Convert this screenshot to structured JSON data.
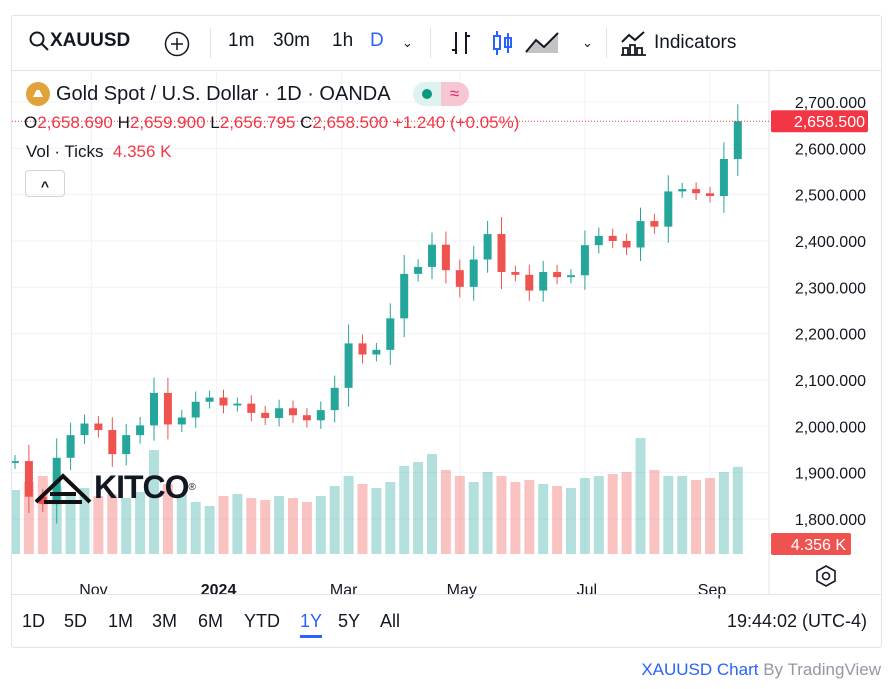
{
  "toolbar": {
    "symbol": "XAUUSD",
    "intervals": [
      "1m",
      "30m",
      "1h",
      "D"
    ],
    "active_interval": "D",
    "indicators_label": "Indicators"
  },
  "legend": {
    "title": "Gold Spot / U.S. Dollar · 1D · OANDA",
    "o_label": "O",
    "o": "2,658.690",
    "h_label": "H",
    "h": "2,659.900",
    "l_label": "L",
    "l": "2,656.795",
    "c_label": "C",
    "c": "2,658.500",
    "change": "+1.240 (+0.05%)",
    "vol_label": "Vol · Ticks",
    "vol": "4.356 K",
    "collapse": "^"
  },
  "logo": "KITCO",
  "colors": {
    "up": "#26a69a",
    "down": "#ef5350",
    "accent": "#2962ff",
    "price_label": "#f23645"
  },
  "chart_data": {
    "type": "candlestick",
    "title": "Gold Spot / U.S. Dollar · 1D · OANDA",
    "ylim": [
      1760,
      2740
    ],
    "yticks": [
      1800,
      1900,
      2000,
      2100,
      2200,
      2300,
      2400,
      2500,
      2600,
      2700
    ],
    "ytick_labels": [
      "1,800.000",
      "1,900.000",
      "2,000.000",
      "2,100.000",
      "2,200.000",
      "2,300.000",
      "2,400.000",
      "2,500.000",
      "2,600.000",
      "2,700.000"
    ],
    "xtick_labels": [
      "Nov",
      "2024",
      "Mar",
      "May",
      "Jul",
      "Sep"
    ],
    "xtick_weeks": [
      5.5,
      14.5,
      23.5,
      32,
      41,
      50
    ],
    "last_price": 2658.5,
    "last_price_label": "2,658.500",
    "last_volume_label": "4.356 K",
    "closes": [
      1925,
      1848,
      1832,
      1932,
      1981,
      2006,
      1992,
      1940,
      1981,
      2002,
      2072,
      2004,
      2019,
      2053,
      2062,
      2045,
      2049,
      2029,
      2018,
      2039,
      2024,
      2013,
      2035,
      2083,
      2179,
      2155,
      2165,
      2233,
      2329,
      2344,
      2392,
      2337,
      2301,
      2360,
      2415,
      2333,
      2327,
      2293,
      2333,
      2322,
      2326,
      2391,
      2411,
      2400,
      2386,
      2443,
      2431,
      2507,
      2512,
      2503,
      2497,
      2577,
      2658.5
    ],
    "first_open": 1921,
    "volumes_k": [
      3.2,
      3.6,
      3.9,
      3.4,
      3.1,
      3.3,
      2.9,
      3.0,
      2.8,
      3.1,
      5.2,
      3.5,
      3.0,
      2.6,
      2.4,
      2.9,
      3.0,
      2.8,
      2.7,
      2.9,
      2.8,
      2.6,
      2.9,
      3.4,
      3.9,
      3.5,
      3.3,
      3.6,
      4.4,
      4.6,
      5.0,
      4.2,
      3.9,
      3.6,
      4.1,
      3.9,
      3.6,
      3.7,
      3.5,
      3.4,
      3.3,
      3.8,
      3.9,
      4.0,
      4.1,
      5.8,
      4.2,
      3.9,
      3.9,
      3.7,
      3.8,
      4.1,
      4.356
    ]
  },
  "range_buttons": [
    "1D",
    "5D",
    "1M",
    "3M",
    "6M",
    "YTD",
    "1Y",
    "5Y",
    "All"
  ],
  "active_range": "1Y",
  "time": "19:44:02 (UTC-4)",
  "credit": {
    "link": "XAUUSD Chart",
    "by": "By TradingView"
  }
}
